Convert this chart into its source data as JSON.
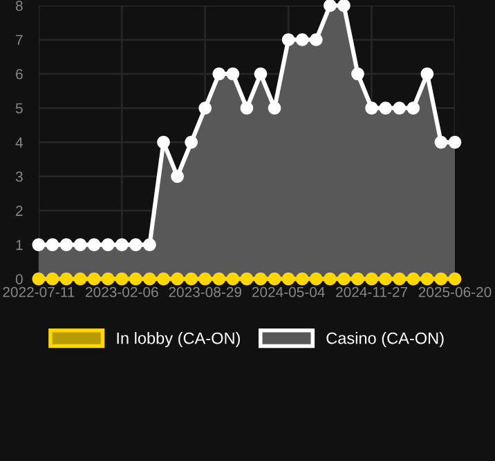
{
  "chart_data": {
    "type": "area",
    "categories": [
      "2022-07-11",
      null,
      null,
      null,
      null,
      null,
      "2023-02-06",
      null,
      null,
      null,
      null,
      null,
      "2023-08-29",
      null,
      null,
      null,
      null,
      null,
      "2024-05-04",
      null,
      null,
      null,
      null,
      null,
      "2024-11-27",
      null,
      null,
      null,
      null,
      null,
      "2025-06-20"
    ],
    "series": [
      {
        "name": "In lobby (CA-ON)",
        "type": "line",
        "color": "#ffd700",
        "values": [
          0,
          0,
          0,
          0,
          0,
          0,
          0,
          0,
          0,
          0,
          0,
          0,
          0,
          0,
          0,
          0,
          0,
          0,
          0,
          0,
          0,
          0,
          0,
          0,
          0,
          0,
          0,
          0,
          0,
          0,
          0
        ]
      },
      {
        "name": "Casino (CA-ON)",
        "color": "#ffffff",
        "values": [
          1,
          1,
          1,
          1,
          1,
          1,
          1,
          1,
          1,
          4,
          3,
          4,
          5,
          6,
          6,
          5,
          6,
          5,
          7,
          7,
          7,
          8,
          8,
          6,
          5,
          5,
          5,
          5,
          6,
          4,
          4
        ]
      }
    ],
    "ylim": [
      0,
      8
    ],
    "yticks": [
      0,
      1,
      2,
      3,
      4,
      5,
      6,
      7,
      8
    ],
    "grid": true,
    "legend": "bottom",
    "marker": "circle"
  }
}
